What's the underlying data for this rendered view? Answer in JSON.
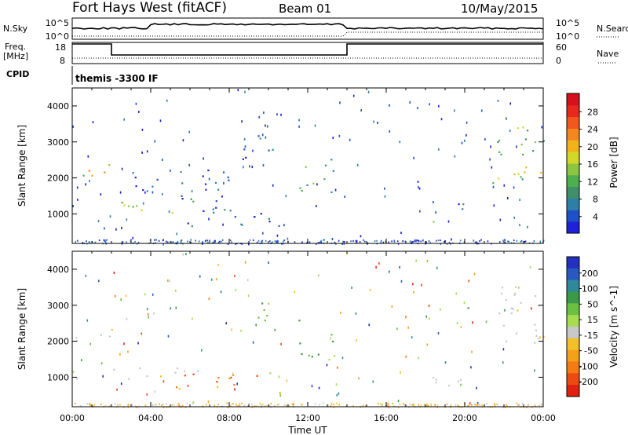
{
  "header": {
    "site": "Fort Hays West (fitACF)",
    "beam": "Beam 01",
    "date": "10/May/2015"
  },
  "panels": {
    "nsky": {
      "label": "N.Sky",
      "ticks_left": [
        "10^5",
        "10^0"
      ],
      "right_label": "N.Search",
      "ticks_right": [
        "10^5",
        "10^0"
      ]
    },
    "freq": {
      "label_top": "Freq.",
      "label_bottom": "[MHz]",
      "ticks_left": [
        "18",
        "8"
      ],
      "right_label": "Nave",
      "ticks_right": [
        "60",
        "0"
      ]
    },
    "cpid": {
      "label": "CPID",
      "text": "themis -3300 IF"
    }
  },
  "axes": {
    "ylabel": "Slant Range [km]",
    "xlabel": "Time UT",
    "yticks": [
      "1000",
      "2000",
      "3000",
      "4000"
    ],
    "xticks": [
      "00:00",
      "04:00",
      "08:00",
      "12:00",
      "16:00",
      "20:00",
      "00:00"
    ]
  },
  "chart_data": [
    {
      "type": "heatmap",
      "title": "",
      "xlabel": "",
      "ylabel": "Slant Range [km]",
      "xlim": [
        0,
        24
      ],
      "ylim": [
        180,
        4500
      ],
      "colorbar": {
        "label": "Power [dB]",
        "ticks": [
          "4",
          "8",
          "12",
          "16",
          "20",
          "24",
          "28"
        ],
        "colors": [
          "#2020d8",
          "#1e50c8",
          "#2e7fa8",
          "#3f8f6a",
          "#4caf50",
          "#8cc63f",
          "#d2d82a",
          "#f2b21c",
          "#f4871d",
          "#f0581d",
          "#e8281c",
          "#d80f1c"
        ]
      },
      "regions": [
        {
          "t": [
            0.05,
            2.05
          ],
          "r": [
            1900,
            2450
          ],
          "level": 0.55
        },
        {
          "t": [
            2.0,
            6.5
          ],
          "r": [
            1000,
            1400
          ],
          "level": 0.45
        },
        {
          "t": [
            4.8,
            10.6
          ],
          "r": [
            650,
            1150
          ],
          "level": 0.2
        },
        {
          "t": [
            6.5,
            9.0
          ],
          "r": [
            1100,
            1700
          ],
          "level": 0.15
        },
        {
          "t": [
            3.0,
            8.0
          ],
          "r": [
            1400,
            2300
          ],
          "level": 0.1
        },
        {
          "t": [
            8.5,
            10.3
          ],
          "r": [
            2300,
            3200
          ],
          "level": 0.15
        },
        {
          "t": [
            11.5,
            13.4
          ],
          "r": [
            1500,
            2600
          ],
          "level": 0.35
        },
        {
          "t": [
            18.3,
            19.0
          ],
          "r": [
            600,
            900
          ],
          "level": 0.5
        },
        {
          "t": [
            19.0,
            20.3
          ],
          "r": [
            850,
            1300
          ],
          "level": 0.15
        },
        {
          "t": [
            21.3,
            24.0
          ],
          "r": [
            1800,
            3700
          ],
          "level": 0.45
        }
      ]
    },
    {
      "type": "heatmap",
      "title": "",
      "xlabel": "Time UT",
      "ylabel": "Slant Range [km]",
      "xlim": [
        0,
        24
      ],
      "ylim": [
        180,
        4500
      ],
      "colorbar": {
        "label": "Velocity [m s^-1]",
        "ticks": [
          "200",
          "100",
          "50",
          "15",
          "-15",
          "-50",
          "-100",
          "-200"
        ],
        "colors": [
          "#2330c0",
          "#2a58c0",
          "#2e8a9a",
          "#3a9a4a",
          "#6cc040",
          "#a8dc50",
          "#c8c8c8",
          "#f4c02a",
          "#f4a01a",
          "#f47a12",
          "#ec4a12",
          "#e02010"
        ]
      },
      "regions": [
        {
          "t": [
            0.05,
            2.05
          ],
          "r": [
            1900,
            2450
          ],
          "velocity_class": "ground"
        },
        {
          "t": [
            2.0,
            6.5
          ],
          "r": [
            1000,
            1400
          ],
          "velocity_class": "ground"
        },
        {
          "t": [
            4.8,
            10.6
          ],
          "r": [
            650,
            1150
          ],
          "velocity_class": "negative"
        },
        {
          "t": [
            9.9,
            10.7
          ],
          "r": [
            800,
            1200
          ],
          "velocity_class": "positive"
        },
        {
          "t": [
            8.5,
            10.3
          ],
          "r": [
            2300,
            3200
          ],
          "velocity_class": "positive"
        },
        {
          "t": [
            11.5,
            13.4
          ],
          "r": [
            1500,
            2600
          ],
          "velocity_class": "positive"
        },
        {
          "t": [
            18.3,
            20.3
          ],
          "r": [
            600,
            1300
          ],
          "velocity_class": "ground"
        },
        {
          "t": [
            21.3,
            24.0
          ],
          "r": [
            1800,
            3700
          ],
          "velocity_class": "ground"
        }
      ]
    }
  ]
}
